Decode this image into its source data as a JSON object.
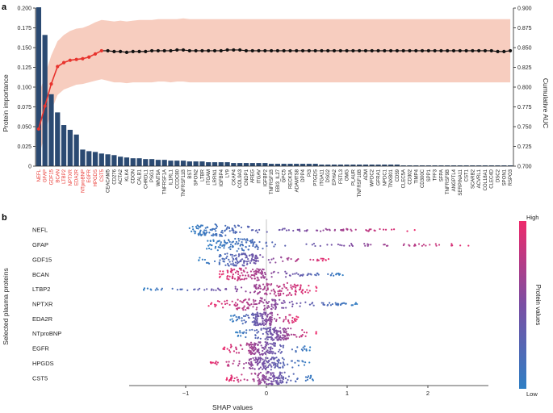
{
  "panel_a": {
    "label": "a",
    "chart_data": {
      "type": "bar",
      "ylabel": "Protein importance",
      "ylim": [
        0,
        0.2
      ],
      "yticks": [
        "0",
        "0.025",
        "0.050",
        "0.075",
        "0.100",
        "0.125",
        "0.150",
        "0.175",
        "0.200"
      ],
      "y2label": "Cumulative AUC",
      "y2lim": [
        0.7,
        0.9
      ],
      "y2ticks": [
        "0.700",
        "0.725",
        "0.750",
        "0.775",
        "0.800",
        "0.825",
        "0.850",
        "0.875",
        "0.900"
      ],
      "highlight_count": 11,
      "colors": {
        "bar": "#2b4a72",
        "bar_highlight": "#6fa3cf",
        "auc_line": "#e8332d",
        "auc_line_tail": "#111111",
        "band": "#f7cdbf",
        "label_highlight": "#e8332d",
        "label_normal": "#222222"
      },
      "categories": [
        "NEFL",
        "GFAP",
        "GDF15",
        "BCAN",
        "LTBP2",
        "NPTXR",
        "EDA2R",
        "NTproBNP",
        "EGFR",
        "HPGDS",
        "CST5",
        "CEACAM5",
        "CD276",
        "ACTA2",
        "KLK4",
        "CDON",
        "CALB1",
        "CHRDL1",
        "PSG1",
        "WNT9A",
        "TNFRSF1A",
        "IL1RL1",
        "CCDC80",
        "TNFRSF11B",
        "BST",
        "SPON2",
        "LTBR",
        "ITGAM",
        "LRRN1",
        "IGFBP4",
        "LY9",
        "CKAP4",
        "COL9A3",
        "CNDP1",
        "AREG",
        "ITGAV",
        "IGFBP2",
        "TNFRSF1B",
        "EBI3_IL27",
        "GPC5",
        "RECK3A",
        "ADAMTS8",
        "DPP4",
        "PI3",
        "PTGDS",
        "ITGA11",
        "DSG2",
        "EPHA2",
        "FSTL3",
        "OMG",
        "PLAUR",
        "TNFRSF10B",
        "ADM",
        "WFDC2",
        "GFRA1",
        "NPDC1",
        "TNXB01",
        "CD59",
        "CLEC5A",
        "CD302",
        "TIMP4",
        "CD300C",
        "SPP1",
        "TFF3",
        "SFPA",
        "TNFRSF9B",
        "ANGPTL4",
        "SERPINA11",
        "CST1",
        "SCARB2",
        "ACVRL1",
        "COL18A1",
        "CLEC4D",
        "DSC2",
        "SPON1",
        "RSPO3"
      ],
      "values": [
        0.201,
        0.166,
        0.091,
        0.068,
        0.052,
        0.046,
        0.04,
        0.021,
        0.019,
        0.018,
        0.016,
        0.015,
        0.014,
        0.012,
        0.011,
        0.01,
        0.01,
        0.009,
        0.009,
        0.008,
        0.008,
        0.007,
        0.007,
        0.007,
        0.006,
        0.006,
        0.006,
        0.005,
        0.005,
        0.005,
        0.005,
        0.004,
        0.004,
        0.004,
        0.004,
        0.004,
        0.004,
        0.003,
        0.003,
        0.003,
        0.003,
        0.003,
        0.003,
        0.003,
        0.003,
        0.002,
        0.002,
        0.002,
        0.002,
        0.002,
        0.002,
        0.002,
        0.002,
        0.002,
        0.002,
        0.002,
        0.002,
        0.002,
        0.001,
        0.001,
        0.001,
        0.001,
        0.001,
        0.001,
        0.001,
        0.001,
        0.001,
        0.001,
        0.001,
        0.001,
        0.001,
        0.001,
        0.001,
        0.001,
        0.001,
        0.001
      ],
      "cumulative_auc": [
        0.747,
        0.776,
        0.804,
        0.826,
        0.831,
        0.834,
        0.835,
        0.836,
        0.838,
        0.842,
        0.846,
        0.846,
        0.845,
        0.845,
        0.844,
        0.845,
        0.845,
        0.845,
        0.846,
        0.846,
        0.846,
        0.846,
        0.847,
        0.847,
        0.846,
        0.846,
        0.846,
        0.846,
        0.846,
        0.846,
        0.847,
        0.847,
        0.847,
        0.846,
        0.846,
        0.846,
        0.846,
        0.846,
        0.846,
        0.846,
        0.846,
        0.846,
        0.846,
        0.846,
        0.846,
        0.846,
        0.846,
        0.846,
        0.846,
        0.846,
        0.846,
        0.846,
        0.846,
        0.846,
        0.846,
        0.846,
        0.846,
        0.846,
        0.846,
        0.846,
        0.846,
        0.846,
        0.846,
        0.846,
        0.846,
        0.846,
        0.846,
        0.846,
        0.846,
        0.846,
        0.846,
        0.846,
        0.846,
        0.845,
        0.845,
        0.846
      ],
      "auc_band": [
        [
          0.71,
          0.79
        ],
        [
          0.742,
          0.815
        ],
        [
          0.77,
          0.84
        ],
        [
          0.79,
          0.858
        ],
        [
          0.797,
          0.866
        ],
        [
          0.8,
          0.871
        ],
        [
          0.803,
          0.874
        ],
        [
          0.804,
          0.875
        ],
        [
          0.806,
          0.878
        ],
        [
          0.808,
          0.882
        ],
        [
          0.81,
          0.885
        ],
        [
          0.808,
          0.884
        ],
        [
          0.806,
          0.883
        ],
        [
          0.806,
          0.884
        ],
        [
          0.805,
          0.883
        ],
        [
          0.806,
          0.884
        ],
        [
          0.806,
          0.885
        ],
        [
          0.806,
          0.885
        ],
        [
          0.806,
          0.885
        ],
        [
          0.807,
          0.886
        ],
        [
          0.807,
          0.886
        ],
        [
          0.806,
          0.886
        ],
        [
          0.807,
          0.886
        ],
        [
          0.807,
          0.887
        ],
        [
          0.806,
          0.886
        ],
        [
          0.806,
          0.886
        ],
        [
          0.806,
          0.886
        ],
        [
          0.806,
          0.886
        ],
        [
          0.806,
          0.886
        ],
        [
          0.806,
          0.886
        ],
        [
          0.806,
          0.886
        ],
        [
          0.806,
          0.886
        ],
        [
          0.806,
          0.886
        ],
        [
          0.806,
          0.886
        ],
        [
          0.806,
          0.886
        ],
        [
          0.806,
          0.886
        ],
        [
          0.806,
          0.886
        ],
        [
          0.806,
          0.886
        ],
        [
          0.806,
          0.886
        ],
        [
          0.806,
          0.886
        ],
        [
          0.806,
          0.886
        ],
        [
          0.806,
          0.886
        ],
        [
          0.806,
          0.886
        ],
        [
          0.806,
          0.886
        ],
        [
          0.806,
          0.886
        ],
        [
          0.806,
          0.886
        ],
        [
          0.806,
          0.886
        ],
        [
          0.806,
          0.886
        ],
        [
          0.806,
          0.886
        ],
        [
          0.806,
          0.886
        ],
        [
          0.806,
          0.886
        ],
        [
          0.806,
          0.886
        ],
        [
          0.806,
          0.886
        ],
        [
          0.806,
          0.886
        ],
        [
          0.806,
          0.886
        ],
        [
          0.806,
          0.886
        ],
        [
          0.806,
          0.886
        ],
        [
          0.806,
          0.886
        ],
        [
          0.806,
          0.886
        ],
        [
          0.806,
          0.886
        ],
        [
          0.806,
          0.886
        ],
        [
          0.806,
          0.886
        ],
        [
          0.806,
          0.886
        ],
        [
          0.806,
          0.886
        ],
        [
          0.806,
          0.886
        ],
        [
          0.806,
          0.886
        ],
        [
          0.806,
          0.886
        ],
        [
          0.806,
          0.886
        ],
        [
          0.806,
          0.886
        ],
        [
          0.806,
          0.886
        ],
        [
          0.806,
          0.886
        ],
        [
          0.806,
          0.886
        ],
        [
          0.806,
          0.886
        ],
        [
          0.806,
          0.886
        ],
        [
          0.806,
          0.886
        ],
        [
          0.806,
          0.886
        ]
      ]
    }
  },
  "panel_b": {
    "label": "b",
    "chart_data": {
      "type": "scatter",
      "xlabel": "SHAP values",
      "ylabel": "Selected plasma proteins",
      "xlim": [
        -1.7,
        2.75
      ],
      "xticks": [
        -1,
        0,
        1,
        2
      ],
      "xtick_labels": [
        "−1",
        "0",
        "1",
        "2"
      ],
      "colorbar": {
        "label": "Protein values",
        "high": "High",
        "low": "Low",
        "low_color": "#2f7fc4",
        "mid_color": "#7a4fa4",
        "high_color": "#ee2a6b"
      },
      "rows": [
        {
          "name": "NEFL",
          "low": -1.0,
          "high": 1.85,
          "neg_color": "low",
          "pos_color": "high",
          "peak": -0.6
        },
        {
          "name": "GFAP",
          "low": -0.78,
          "high": 2.65,
          "neg_color": "low",
          "pos_color": "high",
          "peak": -0.4
        },
        {
          "name": "GDF15",
          "low": -0.85,
          "high": 0.8,
          "neg_color": "low",
          "pos_color": "high",
          "peak": -0.35
        },
        {
          "name": "BCAN",
          "low": -0.6,
          "high": 0.98,
          "neg_color": "high",
          "pos_color": "low",
          "peak": -0.25
        },
        {
          "name": "LTBP2",
          "low": -1.55,
          "high": 0.65,
          "neg_color": "low",
          "pos_color": "high",
          "peak": 0.15
        },
        {
          "name": "NPTXR",
          "low": -0.72,
          "high": 1.15,
          "neg_color": "high",
          "pos_color": "low",
          "peak": -0.15
        },
        {
          "name": "EDA2R",
          "low": -0.45,
          "high": 0.4,
          "neg_color": "low",
          "pos_color": "high",
          "peak": -0.05
        },
        {
          "name": "NTproBNP",
          "low": -0.38,
          "high": 0.62,
          "neg_color": "low",
          "pos_color": "high",
          "peak": 0.12
        },
        {
          "name": "EGFR",
          "low": -0.55,
          "high": 0.55,
          "neg_color": "high",
          "pos_color": "low",
          "peak": -0.05
        },
        {
          "name": "HPGDS",
          "low": -0.72,
          "high": 0.55,
          "neg_color": "high",
          "pos_color": "low",
          "peak": -0.03
        },
        {
          "name": "CST5",
          "low": -0.5,
          "high": 0.62,
          "neg_color": "high",
          "pos_color": "low",
          "peak": 0.05
        }
      ]
    }
  }
}
